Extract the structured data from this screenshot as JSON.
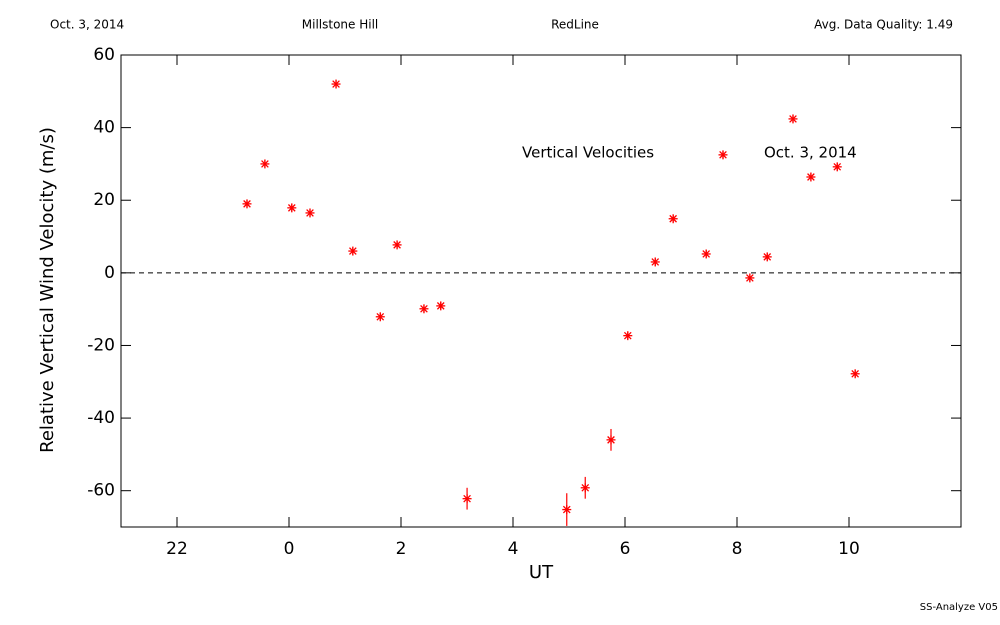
{
  "header": {
    "date": "Oct. 3, 2014",
    "site": "Millstone Hill",
    "instrument": "RedLine",
    "quality": "Avg. Data Quality: 1.49"
  },
  "footer": "SS-Analyze V05",
  "chart_data": {
    "type": "scatter",
    "x_label": "UT",
    "y_label": "Relative Vertical Wind Velocity (m/s)",
    "annotations": [
      "Vertical Velocities",
      "Oct. 3, 2014"
    ],
    "color": "#ff0000",
    "x": [
      -0.75,
      -0.43,
      0.05,
      0.375,
      0.84,
      1.14,
      1.63,
      1.93,
      2.41,
      2.71,
      3.18,
      4.96,
      5.29,
      5.75,
      6.05,
      6.54,
      6.86,
      7.45,
      7.75,
      8.23,
      8.54,
      9.0,
      9.32,
      9.79,
      10.11
    ],
    "values": [
      19,
      30,
      17.9,
      16.5,
      52,
      6,
      -12.1,
      7.7,
      -9.9,
      -9.1,
      -62.2,
      -65.2,
      -59.2,
      -46,
      -17.3,
      3,
      14.9,
      5.2,
      32.5,
      -1.4,
      4.4,
      42.4,
      26.4,
      29.2,
      -27.8
    ],
    "errors": [
      1,
      1,
      1,
      1,
      1,
      1,
      1,
      1,
      1,
      1,
      3,
      4.5,
      3,
      3,
      1,
      1,
      1,
      1,
      1,
      1,
      1,
      1,
      1,
      1,
      1
    ],
    "reference_line": 0,
    "xlim": [
      -3,
      12
    ],
    "ylim": [
      -70,
      60
    ],
    "xticks": [
      {
        "value": -2,
        "label": "22"
      },
      0,
      2,
      4,
      6,
      8,
      10
    ],
    "yticks": [
      -60,
      -40,
      -20,
      0,
      20,
      40,
      60
    ]
  }
}
